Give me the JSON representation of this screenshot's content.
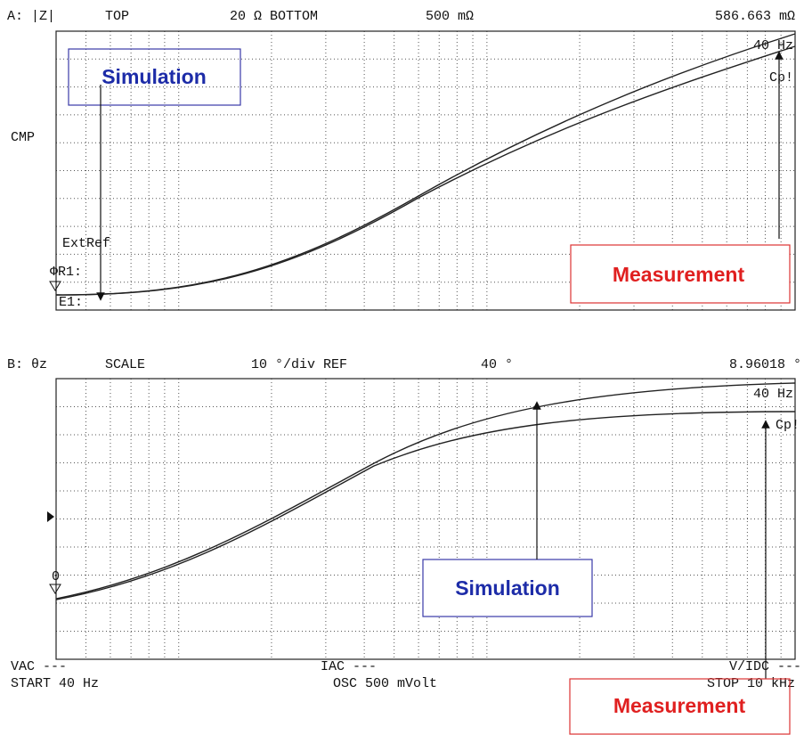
{
  "panel_a": {
    "label": "A: |Z|",
    "top_label": "TOP",
    "top_value": "20 Ω BOTTOM",
    "bottom_value": "500 mΩ",
    "marker_value": "586.663 mΩ",
    "side_label": "CMP",
    "freq_label": "40 Hz",
    "mode_label": "Cp!",
    "ext_ref": "ExtRef",
    "r1": "ΦR1:",
    "e1": "E1:",
    "simulation": "Simulation",
    "measurement": "Measurement"
  },
  "panel_b": {
    "label": "B: θz",
    "scale_label": "SCALE",
    "scale_value": "10 °/div REF",
    "ref_value": "40 °",
    "marker_value": "8.96018 °",
    "freq_label": "40 Hz",
    "mode_label": "Cp!",
    "zero": "0",
    "simulation": "Simulation",
    "measurement": "Measurement"
  },
  "footer": {
    "vac": "VAC ---",
    "iac": "IAC ---",
    "vidc": "V/IDC ---",
    "start": "START 40 Hz",
    "osc": "OSC 500 mVolt",
    "stop": "STOP 10 kHz"
  }
}
